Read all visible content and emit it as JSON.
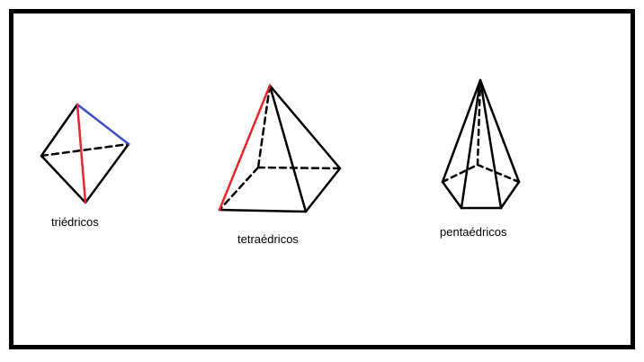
{
  "colors": {
    "edge": "#000000",
    "highlight_red": "#e8262b",
    "highlight_blue": "#3a4ec9",
    "background": "#ffffff"
  },
  "figures": [
    {
      "name": "triedrico",
      "label": "triédricos"
    },
    {
      "name": "tetraedrico",
      "label": "tetraédricos"
    },
    {
      "name": "pentaedrico",
      "label": "pentaédricos"
    }
  ]
}
